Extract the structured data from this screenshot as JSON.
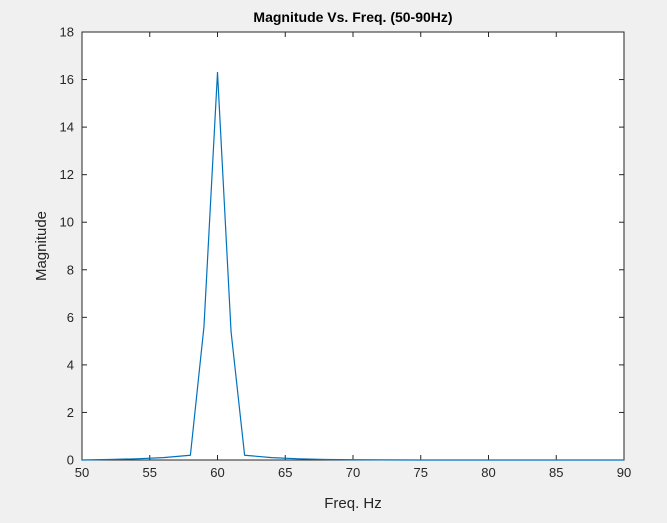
{
  "chart_data": {
    "type": "line",
    "title": "Magnitude Vs. Freq. (50-90Hz)",
    "xlabel": "Freq. Hz",
    "ylabel": "Magnitude",
    "xlim": [
      50,
      90
    ],
    "ylim": [
      0,
      18
    ],
    "xticks": [
      "50",
      "55",
      "60",
      "65",
      "70",
      "75",
      "80",
      "85",
      "90"
    ],
    "yticks": [
      "0",
      "2",
      "4",
      "6",
      "8",
      "10",
      "12",
      "14",
      "16",
      "18"
    ],
    "grid": false,
    "series": [
      {
        "color": "#0072bd",
        "x": [
          50,
          52,
          54,
          56,
          58,
          59,
          60,
          61,
          62,
          64,
          66,
          68,
          70,
          75,
          80,
          85,
          90
        ],
        "y": [
          0.0,
          0.02,
          0.05,
          0.1,
          0.2,
          5.6,
          16.3,
          5.4,
          0.2,
          0.1,
          0.05,
          0.02,
          0.01,
          0.0,
          0.0,
          0.0,
          0.0
        ]
      }
    ]
  },
  "colors": {
    "background": "#f0f0f0",
    "plot_background": "#ffffff",
    "axis": "#262626",
    "line": "#0072bd"
  }
}
